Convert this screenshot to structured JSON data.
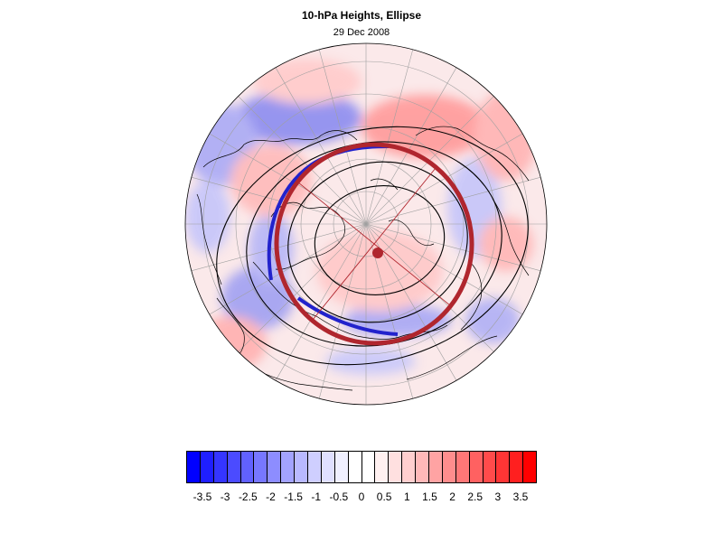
{
  "title": "10-hPa Heights, Ellipse",
  "subtitle": "29 Dec 2008",
  "colorbar": {
    "labels": [
      "-3.5",
      "-3",
      "-2.5",
      "-2",
      "-1.5",
      "-1",
      "-0.5",
      "0",
      "0.5",
      "1",
      "1.5",
      "2",
      "2.5",
      "3",
      "3.5"
    ],
    "colors": [
      "#0000ff",
      "#1f1fff",
      "#3535ff",
      "#4b4bff",
      "#6161ff",
      "#7777ff",
      "#8d8dff",
      "#a3a3ff",
      "#b9b9ff",
      "#cfcfff",
      "#e0e0ff",
      "#f0f0ff",
      "#ffffff",
      "#ffffff",
      "#fff0f0",
      "#ffe0e0",
      "#ffcfcf",
      "#ffb9b9",
      "#ffa3a3",
      "#ff8d8d",
      "#ff7777",
      "#ff6161",
      "#ff4b4b",
      "#ff3535",
      "#ff1f1f",
      "#ff0000"
    ]
  },
  "map_style": {
    "ellipse_color": "#b0262e",
    "blue_edge_color": "#2222cc",
    "grid_color": "#a0a0a0",
    "contour_color": "#000000",
    "positive_fill": "#ffc8c8",
    "negative_fill": "#c8c8ff"
  }
}
